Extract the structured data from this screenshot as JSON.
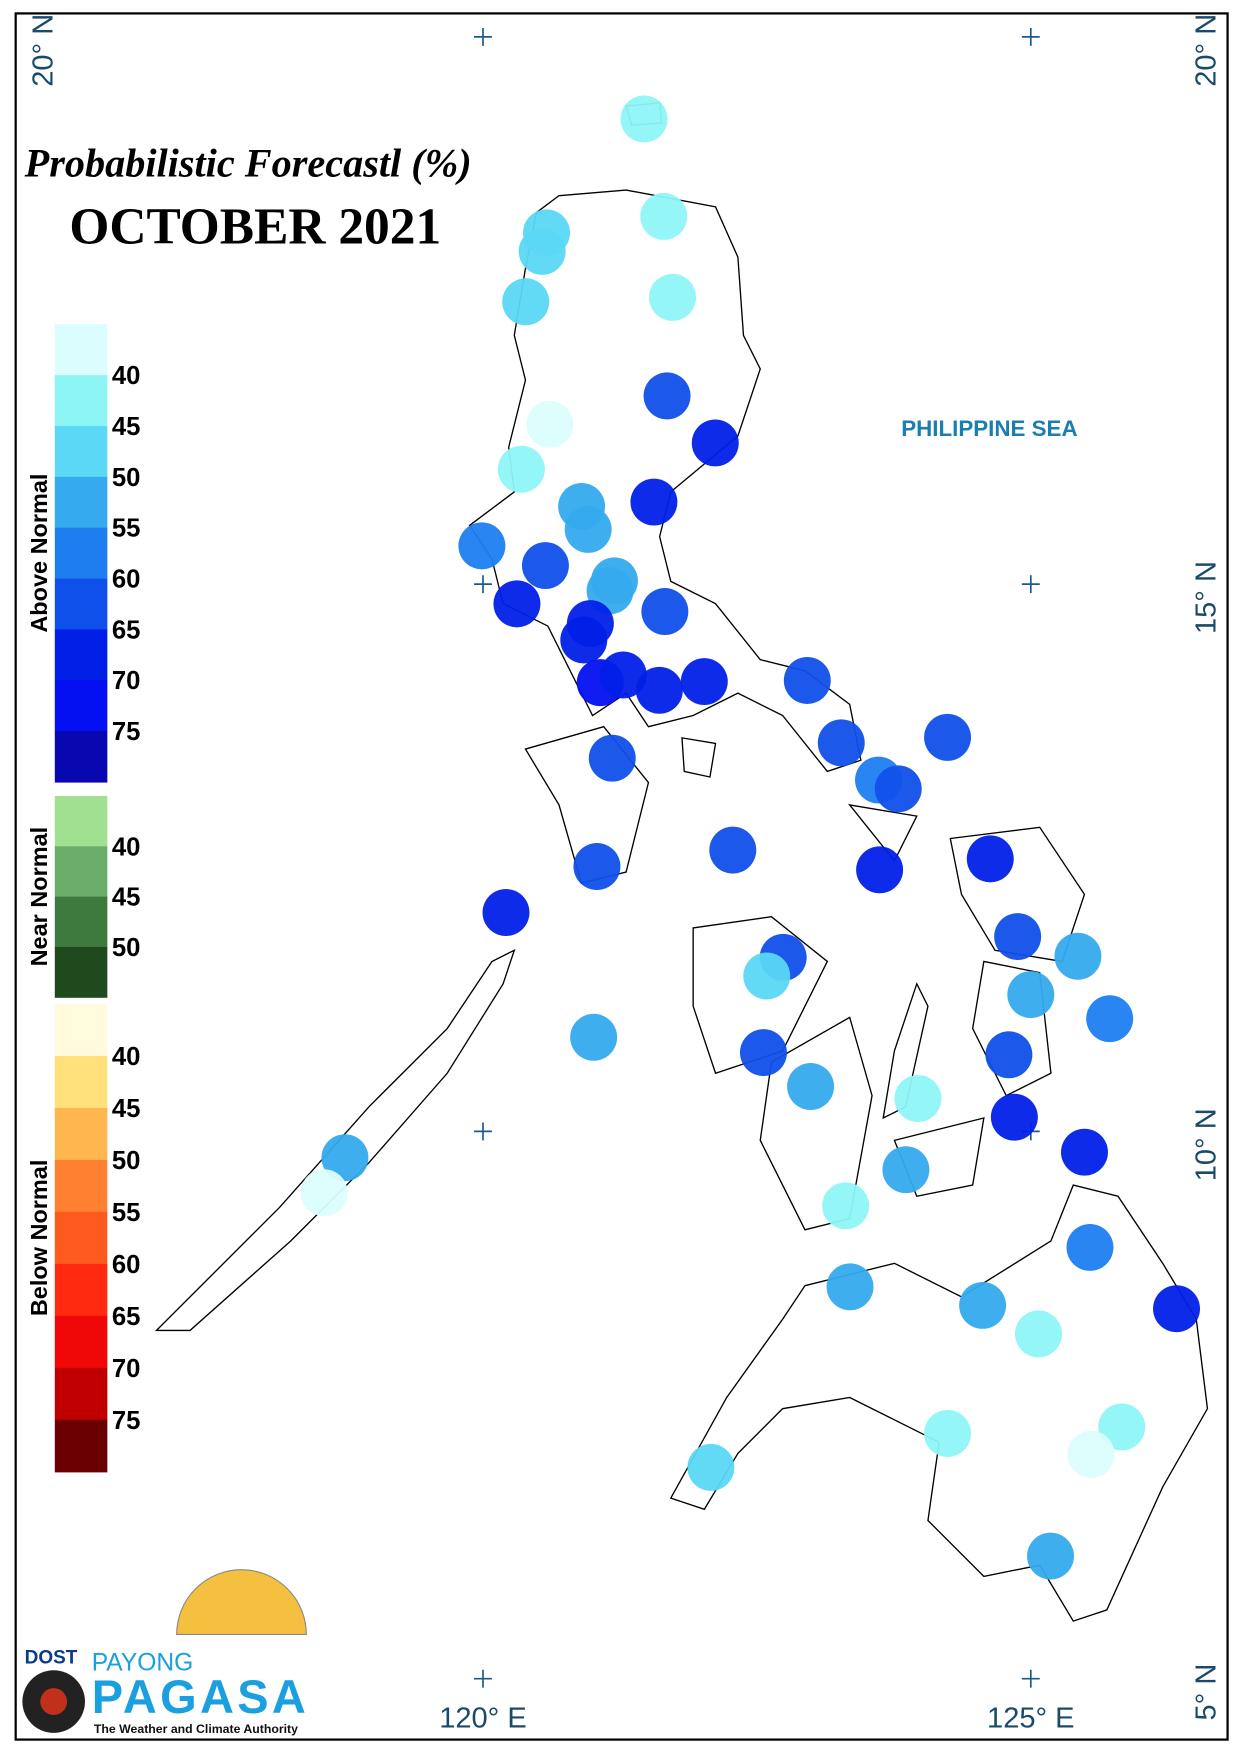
{
  "title": "Probabilistic Forecastl (%)",
  "subtitle": "OCTOBER 2021",
  "sea_label": "PHILIPPINE SEA",
  "legend": {
    "groups": [
      {
        "name": "Above Normal",
        "colors": [
          "#dcfdfd",
          "#8ef5f5",
          "#5ad8f5",
          "#35aaee",
          "#1e7ef0",
          "#1050ea",
          "#0020e8",
          "#0410f2",
          "#0808b0"
        ],
        "ticks": [
          40,
          45,
          50,
          55,
          60,
          65,
          70,
          75
        ]
      },
      {
        "name": "Near Normal",
        "colors": [
          "#a0e090",
          "#6aae6a",
          "#3e7a3e",
          "#1e4a1e"
        ],
        "ticks": [
          40,
          45,
          50
        ]
      },
      {
        "name": "Below Normal",
        "colors": [
          "#fffbdc",
          "#ffe07a",
          "#ffb64e",
          "#ff8030",
          "#ff5a1e",
          "#ff2a10",
          "#f00808",
          "#c00000",
          "#6a0000"
        ],
        "ticks": [
          40,
          45,
          50,
          55,
          60,
          65,
          70,
          75
        ]
      }
    ]
  },
  "graticule": {
    "lat": [
      {
        "value": 20,
        "label": "20° N"
      },
      {
        "value": 15,
        "label": "15° N"
      },
      {
        "value": 10,
        "label": "10° N"
      },
      {
        "value": 5,
        "label": "5° N"
      }
    ],
    "lon": [
      {
        "value": 120,
        "label": "120° E"
      },
      {
        "value": 125,
        "label": "125° E"
      }
    ]
  },
  "stations": {
    "lon": [
      121.47,
      121.65,
      120.58,
      120.54,
      121.73,
      120.39,
      121.68,
      122.12,
      120.61,
      120.35,
      121.56,
      120.9,
      120.96,
      119.99,
      120.57,
      121.2,
      121.16,
      121.66,
      120.31,
      120.98,
      120.92,
      121.07,
      121.28,
      121.61,
      122.02,
      122.96,
      121.18,
      123.27,
      124.24,
      123.61,
      123.79,
      122.28,
      121.04,
      123.62,
      124.63,
      120.21,
      124.88,
      125.43,
      122.74,
      122.59,
      125.0,
      125.72,
      121.01,
      122.56,
      124.8,
      122.99,
      123.97,
      124.85,
      125.49,
      118.74,
      118.55,
      123.86,
      123.31,
      125.54,
      123.35,
      126.33,
      124.56,
      125.07,
      124.24,
      125.83,
      125.55,
      122.08,
      125.18
    ],
    "lat": [
      19.25,
      18.36,
      18.21,
      18.04,
      17.62,
      17.58,
      16.72,
      16.29,
      16.46,
      16.05,
      15.75,
      15.71,
      15.5,
      15.35,
      15.17,
      15.03,
      14.94,
      14.75,
      14.82,
      14.64,
      14.49,
      14.1,
      14.17,
      14.03,
      14.11,
      14.12,
      13.41,
      13.55,
      13.6,
      13.21,
      13.13,
      12.57,
      12.42,
      12.39,
      12.49,
      12.0,
      11.78,
      11.6,
      11.59,
      11.42,
      11.25,
      11.03,
      10.86,
      10.72,
      10.7,
      10.41,
      10.3,
      10.13,
      9.81,
      9.76,
      9.44,
      9.65,
      9.32,
      8.94,
      8.58,
      8.38,
      8.41,
      8.15,
      7.24,
      7.3,
      7.05,
      6.93,
      6.12
    ],
    "values": [
      45,
      45,
      50,
      50,
      45,
      50,
      65,
      70,
      40,
      45,
      70,
      55,
      55,
      60,
      65,
      55,
      55,
      65,
      70,
      70,
      70,
      75,
      70,
      70,
      70,
      65,
      65,
      65,
      65,
      60,
      65,
      65,
      65,
      70,
      70,
      70,
      65,
      55,
      65,
      50,
      55,
      60,
      55,
      65,
      65,
      55,
      45,
      70,
      70,
      55,
      40,
      55,
      45,
      60,
      55,
      70,
      55,
      45,
      45,
      45,
      40,
      50,
      55
    ]
  },
  "logo": {
    "agency": "DOST",
    "brand_top": "PAYONG",
    "brand": "PAGASA",
    "tagline": "The Weather and Climate Authority"
  }
}
